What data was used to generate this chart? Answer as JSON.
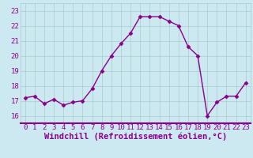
{
  "x": [
    0,
    1,
    2,
    3,
    4,
    5,
    6,
    7,
    8,
    9,
    10,
    11,
    12,
    13,
    14,
    15,
    16,
    17,
    18,
    19,
    20,
    21,
    22,
    23
  ],
  "y": [
    17.2,
    17.3,
    16.8,
    17.1,
    16.7,
    16.9,
    17.0,
    17.8,
    19.0,
    20.0,
    20.8,
    21.5,
    22.6,
    22.6,
    22.6,
    22.3,
    22.0,
    20.6,
    20.0,
    16.0,
    16.9,
    17.3,
    17.3,
    18.2
  ],
  "line_color": "#8B008B",
  "marker": "D",
  "marker_size": 2.5,
  "background_color": "#cce8f0",
  "grid_color": "#aacccc",
  "xlabel": "Windchill (Refroidissement éolien,°C)",
  "xlabel_color": "#8B008B",
  "xlim": [
    -0.5,
    23.5
  ],
  "ylim": [
    15.5,
    23.5
  ],
  "yticks": [
    16,
    17,
    18,
    19,
    20,
    21,
    22,
    23
  ],
  "xticks": [
    0,
    1,
    2,
    3,
    4,
    5,
    6,
    7,
    8,
    9,
    10,
    11,
    12,
    13,
    14,
    15,
    16,
    17,
    18,
    19,
    20,
    21,
    22,
    23
  ],
  "tick_label_color": "#8B008B",
  "tick_label_fontsize": 6.5,
  "xlabel_fontsize": 7.5,
  "spine_color": "#8B008B",
  "linewidth": 1.0
}
